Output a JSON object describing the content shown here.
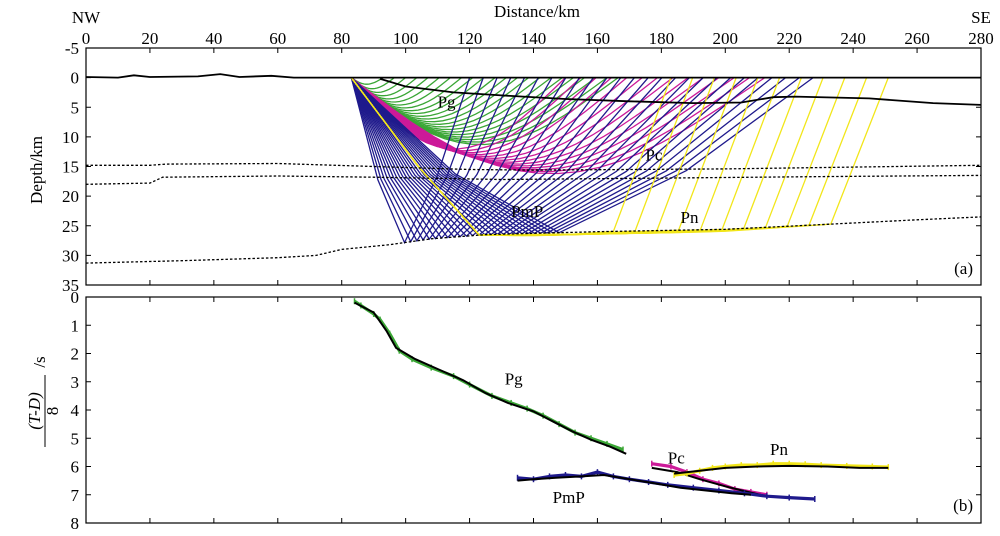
{
  "chart_data": [
    {
      "panel": "(a)",
      "type": "line",
      "title": "Distance/km",
      "xlabel": "Distance/km",
      "ylabel": "Depth/km",
      "xlim": [
        0,
        280
      ],
      "ylim": [
        -5,
        35
      ],
      "x_ticks": [
        "0",
        "20",
        "40",
        "60",
        "80",
        "100",
        "120",
        "140",
        "160",
        "180",
        "200",
        "220",
        "240",
        "260",
        "280"
      ],
      "y_ticks": [
        "-5",
        "0",
        "5",
        "10",
        "15",
        "20",
        "25",
        "30",
        "35"
      ],
      "corner_left": "NW",
      "corner_right": "SE",
      "panel_label": "(a)",
      "source_x": 83,
      "colors": {
        "Pg": "#3aa635",
        "Pc": "#cc1a99",
        "PmP": "#1f1a8c",
        "Pn": "#f2e61a"
      },
      "labels": [
        {
          "text": "Pg",
          "x": 110,
          "y": 5
        },
        {
          "text": "Pc",
          "x": 175,
          "y": 14
        },
        {
          "text": "PmP",
          "x": 133,
          "y": 23.5
        },
        {
          "text": "Pn",
          "x": 186,
          "y": 24.5
        }
      ],
      "interfaces": [
        {
          "name": "surface",
          "style": "solid",
          "points": [
            [
              0,
              -0.1
            ],
            [
              10,
              0
            ],
            [
              15,
              -0.4
            ],
            [
              20,
              -0.1
            ],
            [
              35,
              -0.2
            ],
            [
              42,
              -0.6
            ],
            [
              48,
              -0.1
            ],
            [
              58,
              -0.3
            ],
            [
              65,
              0
            ],
            [
              75,
              0
            ],
            [
              83,
              0
            ],
            [
              280,
              0
            ]
          ]
        },
        {
          "name": "basement",
          "style": "solid",
          "points": [
            [
              92,
              0.2
            ],
            [
              100,
              1.5
            ],
            [
              115,
              2.5
            ],
            [
              130,
              3.0
            ],
            [
              150,
              3.6
            ],
            [
              170,
              4.0
            ],
            [
              190,
              4.3
            ],
            [
              205,
              4.2
            ],
            [
              215,
              3.3
            ],
            [
              222,
              3.2
            ],
            [
              245,
              3.5
            ],
            [
              265,
              4.3
            ],
            [
              280,
              4.6
            ]
          ]
        },
        {
          "name": "mid-crust",
          "style": "dotted",
          "points": [
            [
              0,
              14.8
            ],
            [
              20,
              14.8
            ],
            [
              25,
              14.6
            ],
            [
              60,
              14.5
            ],
            [
              120,
              15.5
            ],
            [
              140,
              15.6
            ],
            [
              200,
              15.4
            ],
            [
              280,
              14.8
            ]
          ]
        },
        {
          "name": "intra-crust",
          "style": "dotted",
          "points": [
            [
              0,
              18
            ],
            [
              20,
              17.8
            ],
            [
              24,
              16.8
            ],
            [
              60,
              16.6
            ],
            [
              90,
              16.8
            ],
            [
              130,
              17.2
            ],
            [
              170,
              17.0
            ],
            [
              230,
              16.7
            ],
            [
              280,
              16.5
            ]
          ]
        },
        {
          "name": "moho",
          "style": "dotted",
          "points": [
            [
              0,
              31.3
            ],
            [
              30,
              30.9
            ],
            [
              60,
              30.4
            ],
            [
              72,
              30.0
            ],
            [
              80,
              29.0
            ],
            [
              95,
              28.2
            ],
            [
              108,
              27.2
            ],
            [
              125,
              26.5
            ],
            [
              160,
              26.0
            ],
            [
              200,
              25.6
            ],
            [
              230,
              24.8
            ],
            [
              260,
              24.0
            ],
            [
              280,
              23.5
            ]
          ]
        }
      ]
    },
    {
      "panel": "(b)",
      "type": "scatter",
      "xlabel": "",
      "ylabel": "(T-D)/8 /s",
      "ylabel_parts": {
        "numerator": "(T-D)",
        "denominator": "8",
        "unit": "/s"
      },
      "xlim": [
        0,
        280
      ],
      "ylim": [
        0,
        8
      ],
      "y_ticks": [
        "0",
        "1",
        "2",
        "3",
        "4",
        "5",
        "6",
        "7",
        "8"
      ],
      "panel_label": "(b)",
      "labels": [
        {
          "text": "Pg",
          "x": 131,
          "y": 3.1
        },
        {
          "text": "Pc",
          "x": 182,
          "y": 5.9
        },
        {
          "text": "PmP",
          "x": 146,
          "y": 7.3
        },
        {
          "text": "Pn",
          "x": 214,
          "y": 5.6
        }
      ],
      "series": [
        {
          "name": "Pg",
          "color": "#3aa635",
          "observed": [
            [
              84,
              0.15
            ],
            [
              86,
              0.3
            ],
            [
              90,
              0.6
            ],
            [
              92,
              0.8
            ],
            [
              95,
              1.3
            ],
            [
              98,
              1.9
            ],
            [
              102,
              2.2
            ],
            [
              108,
              2.5
            ],
            [
              115,
              2.8
            ],
            [
              120,
              3.1
            ],
            [
              127,
              3.5
            ],
            [
              133,
              3.75
            ],
            [
              138,
              3.95
            ],
            [
              143,
              4.2
            ],
            [
              148,
              4.5
            ],
            [
              153,
              4.8
            ],
            [
              158,
              5.0
            ],
            [
              163,
              5.2
            ],
            [
              168,
              5.4
            ]
          ],
          "calculated": [
            [
              84,
              0.2
            ],
            [
              90,
              0.55
            ],
            [
              94,
              1.2
            ],
            [
              97,
              1.8
            ],
            [
              103,
              2.2
            ],
            [
              110,
              2.55
            ],
            [
              118,
              2.95
            ],
            [
              125,
              3.4
            ],
            [
              132,
              3.75
            ],
            [
              140,
              4.05
            ],
            [
              146,
              4.4
            ],
            [
              152,
              4.75
            ],
            [
              158,
              5.05
            ],
            [
              164,
              5.3
            ],
            [
              169,
              5.55
            ]
          ]
        },
        {
          "name": "Pc",
          "color": "#cc1a99",
          "observed": [
            [
              177,
              5.9
            ],
            [
              183,
              6.0
            ],
            [
              188,
              6.2
            ],
            [
              193,
              6.45
            ],
            [
              198,
              6.6
            ],
            [
              203,
              6.8
            ],
            [
              208,
              6.9
            ],
            [
              213,
              7.0
            ]
          ],
          "calculated": [
            [
              177,
              6.05
            ],
            [
              185,
              6.2
            ],
            [
              192,
              6.45
            ],
            [
              200,
              6.7
            ],
            [
              207,
              6.9
            ],
            [
              213,
              7.05
            ]
          ]
        },
        {
          "name": "PmP",
          "color": "#1f1a8c",
          "observed": [
            [
              135,
              6.4
            ],
            [
              140,
              6.45
            ],
            [
              145,
              6.35
            ],
            [
              150,
              6.3
            ],
            [
              155,
              6.35
            ],
            [
              160,
              6.2
            ],
            [
              165,
              6.35
            ],
            [
              170,
              6.45
            ],
            [
              176,
              6.55
            ],
            [
              182,
              6.65
            ],
            [
              190,
              6.75
            ],
            [
              198,
              6.85
            ],
            [
              206,
              6.95
            ],
            [
              213,
              7.05
            ],
            [
              220,
              7.1
            ],
            [
              228,
              7.15
            ]
          ],
          "calculated": [
            [
              135,
              6.5
            ],
            [
              140,
              6.45
            ],
            [
              147,
              6.4
            ],
            [
              155,
              6.35
            ],
            [
              162,
              6.3
            ],
            [
              170,
              6.45
            ],
            [
              178,
              6.6
            ],
            [
              186,
              6.75
            ],
            [
              194,
              6.85
            ],
            [
              202,
              6.95
            ],
            [
              208,
              7.0
            ]
          ]
        },
        {
          "name": "Pn",
          "color": "#f2e61a",
          "observed": [
            [
              184,
              6.3
            ],
            [
              188,
              6.25
            ],
            [
              192,
              6.15
            ],
            [
              196,
              6.05
            ],
            [
              200,
              6.0
            ],
            [
              205,
              5.95
            ],
            [
              210,
              5.95
            ],
            [
              215,
              5.9
            ],
            [
              220,
              5.9
            ],
            [
              225,
              5.92
            ],
            [
              230,
              5.95
            ],
            [
              238,
              5.98
            ],
            [
              246,
              6.0
            ],
            [
              251,
              6.02
            ]
          ],
          "calculated": [
            [
              184,
              6.25
            ],
            [
              192,
              6.15
            ],
            [
              200,
              6.05
            ],
            [
              210,
              6.0
            ],
            [
              220,
              5.98
            ],
            [
              232,
              6.0
            ],
            [
              242,
              6.05
            ],
            [
              251,
              6.05
            ]
          ]
        }
      ]
    }
  ]
}
